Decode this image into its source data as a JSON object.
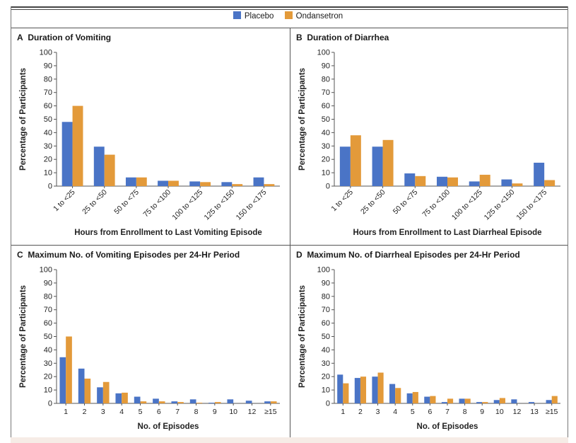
{
  "legend": {
    "placebo": "Placebo",
    "ondansetron": "Ondansetron"
  },
  "colors": {
    "placebo": "#4a74c6",
    "ondansetron": "#e39a3a"
  },
  "chart_data": [
    {
      "id": "A",
      "type": "bar",
      "letter": "A",
      "title": "Duration of Vomiting",
      "xlabel": "Hours from Enrollment to Last Vomiting Episode",
      "ylabel": "Percentage of Participants",
      "ylim": [
        0,
        100
      ],
      "yticks": [
        0,
        10,
        20,
        30,
        40,
        50,
        60,
        70,
        80,
        90,
        100
      ],
      "rotated_labels": true,
      "categories": [
        "1 to <25",
        "25 to <50",
        "50 to <75",
        "75 to <100",
        "100 to <125",
        "125 to <150",
        "150 to <175"
      ],
      "series": [
        {
          "name": "Placebo",
          "values": [
            48,
            29.5,
            6.5,
            4,
            3.5,
            3,
            6.5
          ]
        },
        {
          "name": "Ondansetron",
          "values": [
            60,
            23.5,
            6.5,
            4,
            3,
            1.5,
            1.5
          ]
        }
      ]
    },
    {
      "id": "B",
      "type": "bar",
      "letter": "B",
      "title": "Duration of Diarrhea",
      "xlabel": "Hours from Enrollment to Last Diarrheal Episode",
      "ylabel": "Percentage of Participants",
      "ylim": [
        0,
        100
      ],
      "yticks": [
        0,
        10,
        20,
        30,
        40,
        50,
        60,
        70,
        80,
        90,
        100
      ],
      "rotated_labels": true,
      "categories": [
        "1 to <25",
        "25 to <50",
        "50 to <75",
        "75 to <100",
        "100 to <125",
        "125 to <150",
        "150 to <175"
      ],
      "series": [
        {
          "name": "Placebo",
          "values": [
            29.5,
            29.5,
            9.5,
            7,
            3.5,
            5,
            17.5
          ]
        },
        {
          "name": "Ondansetron",
          "values": [
            38,
            34.5,
            7.5,
            6.5,
            8.5,
            2,
            4.5
          ]
        }
      ]
    },
    {
      "id": "C",
      "type": "bar",
      "letter": "C",
      "title": "Maximum No. of Vomiting Episodes per 24-Hr Period",
      "xlabel": "No. of Episodes",
      "ylabel": "Percentage of Participants",
      "ylim": [
        0,
        100
      ],
      "yticks": [
        0,
        10,
        20,
        30,
        40,
        50,
        60,
        70,
        80,
        90,
        100
      ],
      "rotated_labels": false,
      "categories": [
        "1",
        "2",
        "3",
        "4",
        "5",
        "6",
        "7",
        "8",
        "9",
        "10",
        "12",
        "≥15"
      ],
      "series": [
        {
          "name": "Placebo",
          "values": [
            34.5,
            26,
            12,
            7.5,
            5,
            3.5,
            1.5,
            3,
            0.5,
            3,
            2,
            1.5
          ]
        },
        {
          "name": "Ondansetron",
          "values": [
            50,
            18.5,
            16,
            8,
            1.5,
            1.5,
            1,
            0.5,
            1,
            0,
            0,
            1.5
          ]
        }
      ]
    },
    {
      "id": "D",
      "type": "bar",
      "letter": "D",
      "title": "Maximum No. of Diarrheal Episodes per 24-Hr Period",
      "xlabel": "No. of Episodes",
      "ylabel": "Percentage of Participants",
      "ylim": [
        0,
        100
      ],
      "yticks": [
        0,
        10,
        20,
        30,
        40,
        50,
        60,
        70,
        80,
        90,
        100
      ],
      "rotated_labels": false,
      "categories": [
        "1",
        "2",
        "3",
        "4",
        "5",
        "6",
        "7",
        "8",
        "9",
        "10",
        "12",
        "13",
        "≥15"
      ],
      "series": [
        {
          "name": "Placebo",
          "values": [
            21.5,
            19,
            20,
            14.5,
            7.5,
            5,
            1,
            3.5,
            1,
            2.5,
            3,
            1,
            2.5
          ]
        },
        {
          "name": "Ondansetron",
          "values": [
            15,
            20,
            23,
            11.5,
            8.5,
            5.5,
            3.5,
            3.5,
            1,
            4,
            0,
            0,
            5.5
          ]
        }
      ]
    }
  ]
}
